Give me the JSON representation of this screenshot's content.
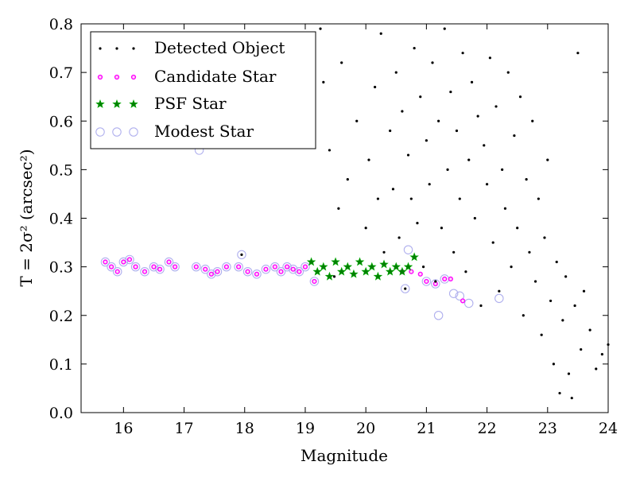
{
  "chart_data": {
    "type": "scatter",
    "xlabel": "Magnitude",
    "ylabel": "T = 2σ² (arcsec²)",
    "xlim": [
      15.3,
      24.0
    ],
    "ylim": [
      0.0,
      0.8
    ],
    "xticks": [
      "16",
      "17",
      "18",
      "19",
      "20",
      "21",
      "22",
      "23",
      "24"
    ],
    "yticks": [
      "0.0",
      "0.1",
      "0.2",
      "0.3",
      "0.4",
      "0.5",
      "0.6",
      "0.7",
      "0.8"
    ],
    "grid": false,
    "legend_placement": "top-left",
    "colors": {
      "detected": "#000000",
      "candidate_edge": "#ff00ff",
      "psf": "#008000",
      "psf_edge": "#00aa00",
      "modest": "#b0b0ee"
    },
    "series": [
      {
        "name": "Detected Object",
        "marker": "dot",
        "points": [
          [
            17.95,
            0.325
          ],
          [
            19.05,
            0.74
          ],
          [
            19.08,
            0.6
          ],
          [
            19.25,
            0.79
          ],
          [
            19.3,
            0.68
          ],
          [
            19.4,
            0.54
          ],
          [
            19.48,
            0.28
          ],
          [
            19.55,
            0.42
          ],
          [
            19.6,
            0.72
          ],
          [
            19.7,
            0.48
          ],
          [
            19.85,
            0.6
          ],
          [
            20.0,
            0.38
          ],
          [
            20.05,
            0.52
          ],
          [
            20.15,
            0.67
          ],
          [
            20.2,
            0.44
          ],
          [
            20.25,
            0.78
          ],
          [
            20.3,
            0.33
          ],
          [
            20.4,
            0.58
          ],
          [
            20.45,
            0.46
          ],
          [
            20.5,
            0.7
          ],
          [
            20.55,
            0.36
          ],
          [
            20.6,
            0.62
          ],
          [
            20.65,
            0.255
          ],
          [
            20.7,
            0.53
          ],
          [
            20.75,
            0.44
          ],
          [
            20.8,
            0.75
          ],
          [
            20.85,
            0.39
          ],
          [
            20.9,
            0.65
          ],
          [
            20.95,
            0.3
          ],
          [
            21.0,
            0.56
          ],
          [
            21.05,
            0.47
          ],
          [
            21.1,
            0.72
          ],
          [
            21.15,
            0.27
          ],
          [
            21.2,
            0.6
          ],
          [
            21.25,
            0.38
          ],
          [
            21.3,
            0.79
          ],
          [
            21.35,
            0.5
          ],
          [
            21.4,
            0.66
          ],
          [
            21.45,
            0.33
          ],
          [
            21.5,
            0.58
          ],
          [
            21.55,
            0.44
          ],
          [
            21.6,
            0.74
          ],
          [
            21.65,
            0.29
          ],
          [
            21.7,
            0.52
          ],
          [
            21.75,
            0.68
          ],
          [
            21.8,
            0.4
          ],
          [
            21.85,
            0.61
          ],
          [
            21.9,
            0.22
          ],
          [
            21.95,
            0.55
          ],
          [
            22.0,
            0.47
          ],
          [
            22.05,
            0.73
          ],
          [
            22.1,
            0.35
          ],
          [
            22.15,
            0.63
          ],
          [
            22.2,
            0.25
          ],
          [
            22.25,
            0.5
          ],
          [
            22.3,
            0.42
          ],
          [
            22.35,
            0.7
          ],
          [
            22.4,
            0.3
          ],
          [
            22.45,
            0.57
          ],
          [
            22.5,
            0.38
          ],
          [
            22.55,
            0.65
          ],
          [
            22.6,
            0.2
          ],
          [
            22.65,
            0.48
          ],
          [
            22.7,
            0.33
          ],
          [
            22.75,
            0.6
          ],
          [
            22.8,
            0.27
          ],
          [
            22.85,
            0.44
          ],
          [
            22.9,
            0.16
          ],
          [
            22.95,
            0.36
          ],
          [
            23.0,
            0.52
          ],
          [
            23.05,
            0.23
          ],
          [
            23.1,
            0.1
          ],
          [
            23.15,
            0.31
          ],
          [
            23.2,
            0.04
          ],
          [
            23.25,
            0.19
          ],
          [
            23.3,
            0.28
          ],
          [
            23.35,
            0.08
          ],
          [
            23.4,
            0.03
          ],
          [
            23.45,
            0.22
          ],
          [
            23.5,
            0.74
          ],
          [
            23.55,
            0.13
          ],
          [
            23.6,
            0.25
          ],
          [
            23.7,
            0.17
          ],
          [
            23.8,
            0.09
          ],
          [
            23.9,
            0.12
          ],
          [
            24.0,
            0.14
          ]
        ]
      },
      {
        "name": "Candidate Star",
        "marker": "small-circle",
        "points": [
          [
            15.7,
            0.31
          ],
          [
            15.8,
            0.3
          ],
          [
            15.9,
            0.29
          ],
          [
            16.0,
            0.31
          ],
          [
            16.1,
            0.315
          ],
          [
            16.2,
            0.3
          ],
          [
            16.35,
            0.29
          ],
          [
            16.5,
            0.3
          ],
          [
            16.6,
            0.295
          ],
          [
            16.75,
            0.31
          ],
          [
            16.85,
            0.3
          ],
          [
            17.2,
            0.3
          ],
          [
            17.35,
            0.295
          ],
          [
            17.45,
            0.285
          ],
          [
            17.55,
            0.29
          ],
          [
            17.7,
            0.3
          ],
          [
            17.9,
            0.3
          ],
          [
            18.05,
            0.29
          ],
          [
            18.2,
            0.285
          ],
          [
            18.35,
            0.295
          ],
          [
            18.5,
            0.3
          ],
          [
            18.6,
            0.29
          ],
          [
            18.7,
            0.3
          ],
          [
            18.8,
            0.295
          ],
          [
            18.9,
            0.29
          ],
          [
            19.0,
            0.3
          ],
          [
            19.15,
            0.27
          ],
          [
            20.6,
            0.29
          ],
          [
            20.75,
            0.29
          ],
          [
            20.9,
            0.285
          ],
          [
            21.0,
            0.27
          ],
          [
            21.15,
            0.265
          ],
          [
            21.3,
            0.275
          ],
          [
            21.4,
            0.275
          ],
          [
            21.6,
            0.23
          ]
        ]
      },
      {
        "name": "PSF Star",
        "marker": "star",
        "points": [
          [
            19.1,
            0.31
          ],
          [
            19.2,
            0.29
          ],
          [
            19.3,
            0.3
          ],
          [
            19.4,
            0.28
          ],
          [
            19.5,
            0.31
          ],
          [
            19.6,
            0.29
          ],
          [
            19.7,
            0.3
          ],
          [
            19.8,
            0.285
          ],
          [
            19.9,
            0.31
          ],
          [
            20.0,
            0.29
          ],
          [
            20.1,
            0.3
          ],
          [
            20.2,
            0.28
          ],
          [
            20.3,
            0.305
          ],
          [
            20.4,
            0.29
          ],
          [
            20.5,
            0.3
          ],
          [
            20.6,
            0.29
          ],
          [
            20.7,
            0.3
          ],
          [
            20.8,
            0.32
          ]
        ]
      },
      {
        "name": "Modest Star",
        "marker": "large-circle",
        "points": [
          [
            15.7,
            0.31
          ],
          [
            15.8,
            0.3
          ],
          [
            15.9,
            0.29
          ],
          [
            16.0,
            0.31
          ],
          [
            16.1,
            0.315
          ],
          [
            16.2,
            0.3
          ],
          [
            16.35,
            0.29
          ],
          [
            16.5,
            0.3
          ],
          [
            16.6,
            0.295
          ],
          [
            16.75,
            0.31
          ],
          [
            16.85,
            0.3
          ],
          [
            17.2,
            0.3
          ],
          [
            17.25,
            0.54
          ],
          [
            17.35,
            0.295
          ],
          [
            17.45,
            0.285
          ],
          [
            17.55,
            0.29
          ],
          [
            17.7,
            0.3
          ],
          [
            17.9,
            0.3
          ],
          [
            17.95,
            0.325
          ],
          [
            18.05,
            0.29
          ],
          [
            18.2,
            0.285
          ],
          [
            18.35,
            0.295
          ],
          [
            18.5,
            0.3
          ],
          [
            18.6,
            0.29
          ],
          [
            18.7,
            0.3
          ],
          [
            18.8,
            0.295
          ],
          [
            18.9,
            0.29
          ],
          [
            19.0,
            0.3
          ],
          [
            19.15,
            0.27
          ],
          [
            20.65,
            0.255
          ],
          [
            20.7,
            0.335
          ],
          [
            21.0,
            0.27
          ],
          [
            21.15,
            0.265
          ],
          [
            21.2,
            0.2
          ],
          [
            21.3,
            0.275
          ],
          [
            21.45,
            0.245
          ],
          [
            21.55,
            0.24
          ],
          [
            21.7,
            0.225
          ],
          [
            22.2,
            0.235
          ]
        ]
      }
    ]
  }
}
